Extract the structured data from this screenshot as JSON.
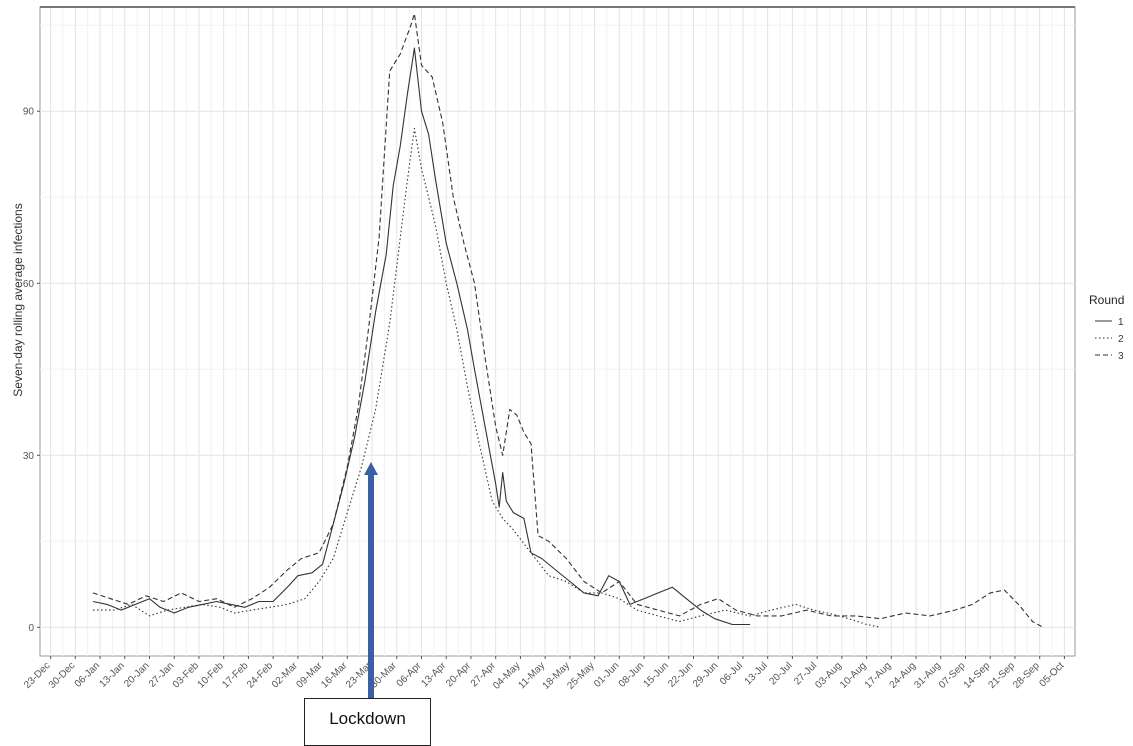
{
  "chart_data": {
    "type": "line",
    "title": "",
    "xlabel": "",
    "ylabel": "Seven-day rolling average infections",
    "ylim": [
      -5,
      108
    ],
    "y_ticks": [
      0,
      30,
      60,
      90
    ],
    "y_tick_labels": [
      "0",
      "30",
      "60",
      "90"
    ],
    "x_range": [
      "2019-12-20",
      "2020-10-08"
    ],
    "x_ticks": [
      "2019-12-23",
      "2019-12-30",
      "2020-01-06",
      "2020-01-13",
      "2020-01-20",
      "2020-01-27",
      "2020-02-03",
      "2020-02-10",
      "2020-02-17",
      "2020-02-24",
      "2020-03-02",
      "2020-03-09",
      "2020-03-16",
      "2020-03-23",
      "2020-03-30",
      "2020-04-06",
      "2020-04-13",
      "2020-04-20",
      "2020-04-27",
      "2020-05-04",
      "2020-05-11",
      "2020-05-18",
      "2020-05-25",
      "2020-06-01",
      "2020-06-08",
      "2020-06-15",
      "2020-06-22",
      "2020-06-29",
      "2020-07-06",
      "2020-07-13",
      "2020-07-20",
      "2020-07-27",
      "2020-08-03",
      "2020-08-10",
      "2020-08-17",
      "2020-08-24",
      "2020-08-31",
      "2020-09-07",
      "2020-09-14",
      "2020-09-21",
      "2020-09-28",
      "2020-10-05"
    ],
    "x_tick_labels": [
      "23-Dec",
      "30-Dec",
      "06-Jan",
      "13-Jan",
      "20-Jan",
      "27-Jan",
      "03-Feb",
      "10-Feb",
      "17-Feb",
      "24-Feb",
      "02-Mar",
      "09-Mar",
      "16-Mar",
      "23-Mar",
      "30-Mar",
      "06-Apr",
      "13-Apr",
      "20-Apr",
      "27-Apr",
      "04-May",
      "11-May",
      "18-May",
      "25-May",
      "01-Jun",
      "08-Jun",
      "15-Jun",
      "22-Jun",
      "29-Jun",
      "06-Jul",
      "13-Jul",
      "20-Jul",
      "27-Jul",
      "03-Aug",
      "10-Aug",
      "17-Aug",
      "24-Aug",
      "31-Aug",
      "07-Sep",
      "14-Sep",
      "21-Sep",
      "28-Sep",
      "05-Oct"
    ],
    "grid": true,
    "legend": {
      "title": "Round",
      "placement": "right"
    },
    "series": [
      {
        "name": "1",
        "dash": "solid",
        "points": [
          [
            "2020-01-04",
            4.5
          ],
          [
            "2020-01-08",
            4
          ],
          [
            "2020-01-12",
            3
          ],
          [
            "2020-01-16",
            4
          ],
          [
            "2020-01-20",
            5
          ],
          [
            "2020-01-23",
            3.5
          ],
          [
            "2020-01-27",
            2.5
          ],
          [
            "2020-01-31",
            3.5
          ],
          [
            "2020-02-04",
            4
          ],
          [
            "2020-02-08",
            4.5
          ],
          [
            "2020-02-12",
            4
          ],
          [
            "2020-02-16",
            3.5
          ],
          [
            "2020-02-20",
            4.5
          ],
          [
            "2020-02-24",
            4.5
          ],
          [
            "2020-02-28",
            7
          ],
          [
            "2020-03-02",
            9
          ],
          [
            "2020-03-06",
            9.5
          ],
          [
            "2020-03-09",
            11
          ],
          [
            "2020-03-12",
            18
          ],
          [
            "2020-03-15",
            25
          ],
          [
            "2020-03-18",
            33
          ],
          [
            "2020-03-21",
            43
          ],
          [
            "2020-03-24",
            55
          ],
          [
            "2020-03-27",
            65
          ],
          [
            "2020-03-29",
            77
          ],
          [
            "2020-03-31",
            84
          ],
          [
            "2020-04-02",
            93
          ],
          [
            "2020-04-04",
            101
          ],
          [
            "2020-04-06",
            90
          ],
          [
            "2020-04-08",
            86
          ],
          [
            "2020-04-10",
            78
          ],
          [
            "2020-04-13",
            67
          ],
          [
            "2020-04-16",
            60
          ],
          [
            "2020-04-19",
            52
          ],
          [
            "2020-04-21",
            45
          ],
          [
            "2020-04-24",
            35
          ],
          [
            "2020-04-27",
            25
          ],
          [
            "2020-04-28",
            21
          ],
          [
            "2020-04-29",
            27
          ],
          [
            "2020-04-30",
            22
          ],
          [
            "2020-05-02",
            20
          ],
          [
            "2020-05-05",
            19
          ],
          [
            "2020-05-07",
            13
          ],
          [
            "2020-05-10",
            12
          ],
          [
            "2020-05-14",
            10
          ],
          [
            "2020-05-18",
            8
          ],
          [
            "2020-05-22",
            6
          ],
          [
            "2020-05-26",
            5.5
          ],
          [
            "2020-05-29",
            9
          ],
          [
            "2020-06-01",
            8
          ],
          [
            "2020-06-04",
            4
          ],
          [
            "2020-06-08",
            5
          ],
          [
            "2020-06-12",
            6
          ],
          [
            "2020-06-16",
            7
          ],
          [
            "2020-06-20",
            5
          ],
          [
            "2020-06-24",
            3
          ],
          [
            "2020-06-28",
            1.5
          ],
          [
            "2020-07-03",
            0.5
          ],
          [
            "2020-07-08",
            0.5
          ]
        ]
      },
      {
        "name": "2",
        "dash": "dotted",
        "points": [
          [
            "2020-01-04",
            3
          ],
          [
            "2020-01-10",
            3
          ],
          [
            "2020-01-15",
            4
          ],
          [
            "2020-01-20",
            2
          ],
          [
            "2020-01-25",
            3
          ],
          [
            "2020-01-30",
            3.5
          ],
          [
            "2020-02-04",
            4
          ],
          [
            "2020-02-09",
            3.5
          ],
          [
            "2020-02-13",
            2.5
          ],
          [
            "2020-02-18",
            3
          ],
          [
            "2020-02-23",
            3.5
          ],
          [
            "2020-02-28",
            4
          ],
          [
            "2020-03-04",
            5
          ],
          [
            "2020-03-08",
            8
          ],
          [
            "2020-03-12",
            12
          ],
          [
            "2020-03-16",
            20
          ],
          [
            "2020-03-20",
            28
          ],
          [
            "2020-03-24",
            38
          ],
          [
            "2020-03-28",
            53
          ],
          [
            "2020-03-31",
            68
          ],
          [
            "2020-04-02",
            78
          ],
          [
            "2020-04-04",
            87
          ],
          [
            "2020-04-06",
            80
          ],
          [
            "2020-04-08",
            75
          ],
          [
            "2020-04-10",
            70
          ],
          [
            "2020-04-13",
            60
          ],
          [
            "2020-04-16",
            52
          ],
          [
            "2020-04-19",
            42
          ],
          [
            "2020-04-22",
            33
          ],
          [
            "2020-04-26",
            22
          ],
          [
            "2020-04-29",
            19
          ],
          [
            "2020-05-02",
            17
          ],
          [
            "2020-05-07",
            13
          ],
          [
            "2020-05-12",
            9
          ],
          [
            "2020-05-17",
            8
          ],
          [
            "2020-05-22",
            6
          ],
          [
            "2020-05-27",
            6
          ],
          [
            "2020-06-01",
            5
          ],
          [
            "2020-06-06",
            3
          ],
          [
            "2020-06-12",
            2
          ],
          [
            "2020-06-18",
            1
          ],
          [
            "2020-06-24",
            2
          ],
          [
            "2020-07-01",
            3
          ],
          [
            "2020-07-08",
            2
          ],
          [
            "2020-07-14",
            3
          ],
          [
            "2020-07-21",
            4
          ],
          [
            "2020-07-26",
            3
          ],
          [
            "2020-07-30",
            2.5
          ],
          [
            "2020-08-05",
            1.5
          ],
          [
            "2020-08-10",
            0.5
          ],
          [
            "2020-08-14",
            0
          ]
        ]
      },
      {
        "name": "3",
        "dash": "dashed",
        "points": [
          [
            "2020-01-04",
            6
          ],
          [
            "2020-01-09",
            5
          ],
          [
            "2020-01-14",
            4
          ],
          [
            "2020-01-19",
            5.5
          ],
          [
            "2020-01-24",
            4.5
          ],
          [
            "2020-01-29",
            6
          ],
          [
            "2020-02-03",
            4.5
          ],
          [
            "2020-02-08",
            5
          ],
          [
            "2020-02-13",
            3.5
          ],
          [
            "2020-02-18",
            5
          ],
          [
            "2020-02-23",
            7
          ],
          [
            "2020-02-28",
            10
          ],
          [
            "2020-03-03",
            12
          ],
          [
            "2020-03-08",
            13
          ],
          [
            "2020-03-12",
            18
          ],
          [
            "2020-03-16",
            28
          ],
          [
            "2020-03-19",
            38
          ],
          [
            "2020-03-22",
            52
          ],
          [
            "2020-03-25",
            68
          ],
          [
            "2020-03-28",
            97
          ],
          [
            "2020-03-31",
            100
          ],
          [
            "2020-04-03",
            105
          ],
          [
            "2020-04-04",
            107
          ],
          [
            "2020-04-06",
            98
          ],
          [
            "2020-04-09",
            96
          ],
          [
            "2020-04-12",
            88
          ],
          [
            "2020-04-15",
            75
          ],
          [
            "2020-04-18",
            67
          ],
          [
            "2020-04-21",
            60
          ],
          [
            "2020-04-24",
            47
          ],
          [
            "2020-04-27",
            35
          ],
          [
            "2020-04-29",
            30
          ],
          [
            "2020-05-01",
            38
          ],
          [
            "2020-05-03",
            37
          ],
          [
            "2020-05-05",
            34
          ],
          [
            "2020-05-07",
            32
          ],
          [
            "2020-05-09",
            16
          ],
          [
            "2020-05-12",
            15
          ],
          [
            "2020-05-17",
            12
          ],
          [
            "2020-05-22",
            8
          ],
          [
            "2020-05-27",
            6
          ],
          [
            "2020-06-01",
            8
          ],
          [
            "2020-06-06",
            4
          ],
          [
            "2020-06-12",
            3
          ],
          [
            "2020-06-18",
            2
          ],
          [
            "2020-06-24",
            4
          ],
          [
            "2020-06-29",
            5
          ],
          [
            "2020-07-04",
            3
          ],
          [
            "2020-07-10",
            2
          ],
          [
            "2020-07-17",
            2
          ],
          [
            "2020-07-24",
            3
          ],
          [
            "2020-07-31",
            2
          ],
          [
            "2020-08-07",
            2
          ],
          [
            "2020-08-14",
            1.5
          ],
          [
            "2020-08-21",
            2.5
          ],
          [
            "2020-08-28",
            2
          ],
          [
            "2020-09-04",
            3
          ],
          [
            "2020-09-09",
            4
          ],
          [
            "2020-09-14",
            6
          ],
          [
            "2020-09-18",
            6.5
          ],
          [
            "2020-09-22",
            4
          ],
          [
            "2020-09-26",
            1
          ],
          [
            "2020-09-29",
            0
          ]
        ]
      }
    ],
    "annotations": [
      {
        "text": "Lockdown",
        "x": "2020-03-23",
        "arrow_tip_y": 30,
        "arrow_color": "#3a5fa3"
      }
    ]
  }
}
